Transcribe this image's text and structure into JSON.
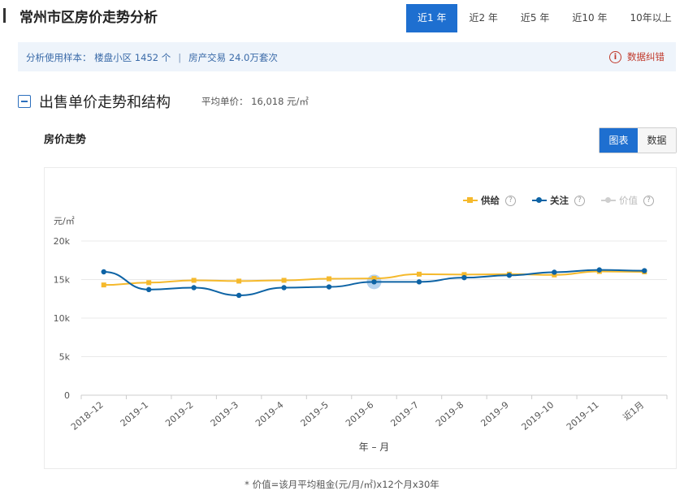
{
  "header": {
    "title": "常州市区房价走势分析"
  },
  "range_tabs": [
    {
      "label": "近1 年",
      "active": true
    },
    {
      "label": "近2 年",
      "active": false
    },
    {
      "label": "近5 年",
      "active": false
    },
    {
      "label": "近10 年",
      "active": false
    },
    {
      "label": "10年以上",
      "active": false
    }
  ],
  "info_bar": {
    "sample": "分析使用样本： 楼盘小区 1452 个",
    "separator": "|",
    "transactions": "房产交易 24.0万套次",
    "error_report": "数据纠错",
    "error_icon": "i"
  },
  "section": {
    "title": "出售单价走势和结构",
    "avg_price": "平均单价： 16,018 元/㎡"
  },
  "chart_heading": "房价走势",
  "view_toggle": {
    "chart_label": "图表",
    "data_label": "数据",
    "active": "chart"
  },
  "legend": {
    "help_icon": "?",
    "items": [
      {
        "label": "供给",
        "color": "#f5b92c",
        "marker": "square",
        "enabled": true
      },
      {
        "label": "关注",
        "color": "#0d63a5",
        "marker": "circle",
        "enabled": true
      },
      {
        "label": "价值",
        "color": "#c8c8c8",
        "marker": "circle",
        "enabled": false
      }
    ]
  },
  "footnote": "* 价值=该月平均租金(元/月/㎡)x12个月x30年",
  "chart_data": {
    "type": "line",
    "title": "",
    "xlabel": "年 – 月",
    "ylabel": "元/㎡",
    "ylim": [
      0,
      20000
    ],
    "yticks": [
      0,
      5000,
      10000,
      15000,
      20000
    ],
    "ytick_labels": [
      "0",
      "5k",
      "10k",
      "15k",
      "20k"
    ],
    "grid": true,
    "legend_position": "top-right",
    "categories": [
      "2018–12",
      "2019–1",
      "2019–2",
      "2019–3",
      "2019–4",
      "2019–5",
      "2019–6",
      "2019–7",
      "2019–8",
      "2019–9",
      "2019–10",
      "2019–11",
      "近1月"
    ],
    "highlight_index": 6,
    "series": [
      {
        "name": "供给",
        "color": "#f5b92c",
        "marker": "square",
        "values": [
          14300,
          14600,
          14900,
          14800,
          14900,
          15100,
          15150,
          15700,
          15650,
          15700,
          15600,
          16050,
          16000
        ]
      },
      {
        "name": "关注",
        "color": "#0d63a5",
        "marker": "circle",
        "values": [
          16000,
          13700,
          13950,
          12950,
          13950,
          14050,
          14700,
          14700,
          15250,
          15550,
          15950,
          16250,
          16150
        ]
      }
    ]
  }
}
